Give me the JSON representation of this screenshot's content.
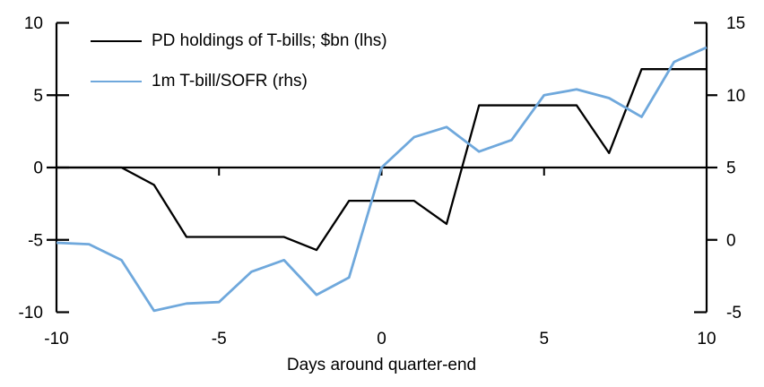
{
  "chart_data": {
    "type": "line",
    "title": "",
    "xlabel": "Days around quarter-end",
    "grid": false,
    "legend_position": "top-left",
    "x": [
      -10,
      -9,
      -8,
      -7,
      -6,
      -5,
      -4,
      -3,
      -2,
      -1,
      0,
      1,
      2,
      3,
      4,
      5,
      6,
      7,
      8,
      9,
      10
    ],
    "x_axis": {
      "min": -10,
      "max": 10,
      "ticks": [
        -10,
        -5,
        0,
        5,
        10
      ]
    },
    "left_axis": {
      "min": -10,
      "max": 10,
      "ticks": [
        10,
        5,
        0,
        -5,
        -10
      ]
    },
    "right_axis": {
      "min": -5,
      "max": 15,
      "ticks": [
        15,
        10,
        5,
        0,
        -5
      ]
    },
    "series": [
      {
        "name": "PD holdings of T-bills; $bn (lhs)",
        "axis": "left",
        "color": "#000000",
        "values": [
          0,
          0,
          0,
          -1.2,
          -4.8,
          -4.8,
          -4.8,
          -4.8,
          -5.7,
          -2.3,
          -2.3,
          -2.3,
          -3.9,
          4.3,
          4.3,
          4.3,
          4.3,
          1.0,
          6.8,
          6.8,
          6.8
        ]
      },
      {
        "name": "1m T-bill/SOFR (rhs)",
        "axis": "right",
        "color": "#6fa8dc",
        "values": [
          -0.2,
          -0.3,
          -1.4,
          -4.9,
          -4.4,
          -4.3,
          -2.2,
          -1.4,
          -3.8,
          -2.6,
          5.0,
          7.1,
          7.8,
          6.1,
          6.9,
          10.0,
          10.4,
          9.8,
          8.5,
          12.3,
          13.3
        ]
      }
    ],
    "colors": {
      "axis": "#000000",
      "text": "#000000",
      "background": "#ffffff"
    }
  }
}
